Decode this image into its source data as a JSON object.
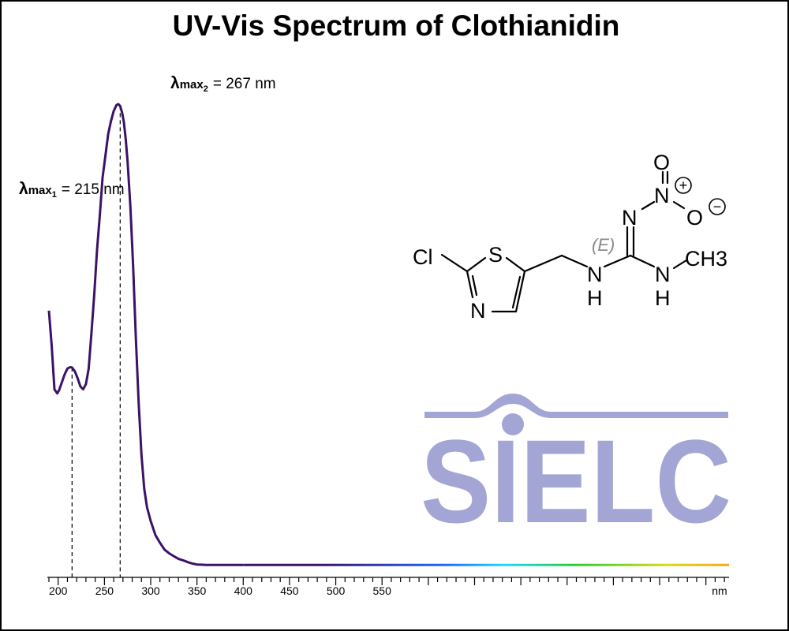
{
  "title": "UV-Vis Spectrum of Clothianidin",
  "chart_data": {
    "type": "line",
    "title": "UV-Vis Spectrum of Clothianidin",
    "xlabel": "",
    "x_unit": "nm",
    "xlim": [
      190,
      925
    ],
    "ylabel": "",
    "ylim": [
      0,
      1.0
    ],
    "x_ticks": [
      200,
      250,
      300,
      350,
      400,
      450,
      500,
      550
    ],
    "grid": false,
    "legend": "none",
    "series": [
      {
        "x": [
          190,
          193,
          196,
          199,
          201,
          204,
          207,
          210,
          213,
          215,
          218,
          221,
          224,
          227,
          230,
          233,
          236,
          239,
          242,
          245,
          248,
          251,
          254,
          257,
          260,
          263,
          265,
          267,
          269,
          271,
          273,
          275,
          278,
          281,
          284,
          287,
          290,
          293,
          296,
          300,
          305,
          310,
          315,
          320,
          325,
          330,
          335,
          340,
          345,
          350,
          360,
          370,
          380,
          400,
          430,
          460,
          500,
          550,
          600,
          700,
          800,
          925
        ],
        "y": [
          0.553,
          0.478,
          0.383,
          0.374,
          0.381,
          0.398,
          0.415,
          0.428,
          0.431,
          0.43,
          0.422,
          0.407,
          0.389,
          0.383,
          0.394,
          0.428,
          0.505,
          0.589,
          0.685,
          0.759,
          0.841,
          0.887,
          0.935,
          0.963,
          0.985,
          0.998,
          1.0,
          0.996,
          0.982,
          0.961,
          0.925,
          0.876,
          0.78,
          0.651,
          0.493,
          0.352,
          0.241,
          0.168,
          0.128,
          0.098,
          0.068,
          0.051,
          0.036,
          0.028,
          0.022,
          0.016,
          0.013,
          0.009,
          0.006,
          0.004,
          0.003,
          0.003,
          0.003,
          0.003,
          0.003,
          0.003,
          0.003,
          0.003,
          0.003,
          0.003,
          0.003,
          0.003
        ]
      }
    ],
    "annotations": [
      {
        "symbol": "λ",
        "sub": "max",
        "subsub": "1",
        "text": "= 215 nm",
        "x": 215
      },
      {
        "symbol": "λ",
        "sub": "max",
        "subsub": "2",
        "text": "= 267 nm",
        "x": 267
      }
    ]
  },
  "colors": {
    "uv_line": "#3a1266",
    "visible_gradient": [
      "#3a1266",
      "#1e66ff",
      "#21d7ff",
      "#29cc3a",
      "#d8d81a",
      "#f5a623"
    ],
    "logo": "#a3a5d4",
    "stereo_label": "#8a8a8a"
  },
  "structure": {
    "atoms": {
      "cl": "Cl",
      "s": "S",
      "n_ring": "N",
      "nh1_n": "N",
      "nh1_h": "H",
      "n_imine": "N",
      "nh2_n": "N",
      "nh2_h": "H",
      "ch3": "CH3",
      "n_nitro": "N",
      "o_top": "O",
      "o_minus": "O"
    },
    "charges": {
      "plus": "+",
      "minus": "−"
    },
    "stereo": "(E)"
  },
  "logo": {
    "text": "SIELC"
  }
}
